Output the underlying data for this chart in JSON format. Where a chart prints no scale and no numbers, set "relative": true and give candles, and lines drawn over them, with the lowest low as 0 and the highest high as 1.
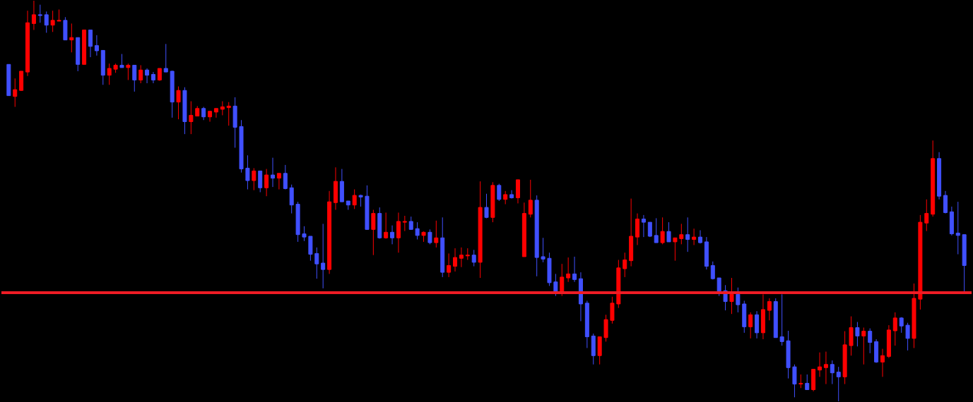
{
  "chart_data": {
    "type": "candlestick",
    "relative": true,
    "categories": [
      null,
      null,
      null,
      null,
      null,
      null,
      null,
      null,
      null,
      null,
      null,
      null,
      null,
      null,
      null,
      null,
      null,
      null,
      null,
      null,
      null,
      null,
      null,
      null,
      null,
      null,
      null,
      null,
      null,
      null,
      null,
      null,
      null,
      null,
      null,
      null,
      null,
      null,
      null,
      null,
      null,
      null,
      null,
      null,
      null,
      null,
      null,
      null,
      null,
      null,
      null,
      null,
      null,
      null,
      null,
      null,
      null,
      null,
      null,
      null,
      null,
      null,
      null,
      null,
      null,
      null,
      null,
      null,
      null,
      null,
      null,
      null,
      null,
      null,
      null,
      null,
      null,
      null,
      null,
      null,
      null,
      null,
      null,
      null,
      null,
      null,
      null,
      null,
      null,
      null,
      null,
      null,
      null,
      null,
      null,
      null,
      null,
      null,
      null,
      null,
      null,
      null,
      null,
      null,
      null,
      null,
      null,
      null,
      null,
      null,
      null,
      null,
      null,
      null,
      null,
      null,
      null,
      null,
      null,
      null,
      null,
      null,
      null,
      null,
      null,
      null,
      null,
      null,
      null,
      null,
      null,
      null,
      null,
      null,
      null,
      null,
      null,
      null,
      null,
      null,
      null,
      null,
      null,
      null,
      null,
      null,
      null,
      null,
      null,
      null,
      null,
      null,
      null
    ],
    "ohlc": [
      [
        0.841,
        0.841,
        0.763,
        0.763
      ],
      [
        0.761,
        0.806,
        0.735,
        0.778
      ],
      [
        0.776,
        0.824,
        0.775,
        0.824
      ],
      [
        0.822,
        0.975,
        0.812,
        0.945
      ],
      [
        0.943,
        1,
        0.927,
        0.965
      ],
      [
        0.965,
        0.99,
        0.945,
        0.963
      ],
      [
        0.965,
        0.973,
        0.92,
        0.939
      ],
      [
        0.939,
        0.975,
        0.922,
        0.951
      ],
      [
        0.949,
        0.978,
        0.949,
        0.951
      ],
      [
        0.951,
        0.959,
        0.902,
        0.902
      ],
      [
        0.902,
        0.943,
        0.871,
        0.908
      ],
      [
        0.908,
        0.908,
        0.824,
        0.841
      ],
      [
        0.841,
        0.927,
        0.841,
        0.927
      ],
      [
        0.927,
        0.927,
        0.859,
        0.886
      ],
      [
        0.888,
        0.914,
        0.863,
        0.875
      ],
      [
        0.876,
        0.876,
        0.79,
        0.814
      ],
      [
        0.814,
        0.843,
        0.79,
        0.831
      ],
      [
        0.829,
        0.843,
        0.82,
        0.839
      ],
      [
        0.839,
        0.867,
        0.833,
        0.833
      ],
      [
        0.833,
        0.843,
        0.802,
        0.839
      ],
      [
        0.839,
        0.839,
        0.773,
        0.802
      ],
      [
        0.802,
        0.839,
        0.794,
        0.827
      ],
      [
        0.827,
        0.831,
        0.794,
        0.814
      ],
      [
        0.816,
        0.822,
        0.794,
        0.802
      ],
      [
        0.802,
        0.831,
        0.8,
        0.831
      ],
      [
        0.831,
        0.892,
        0.822,
        0.822
      ],
      [
        0.824,
        0.825,
        0.708,
        0.747
      ],
      [
        0.747,
        0.786,
        0.704,
        0.776
      ],
      [
        0.776,
        0.784,
        0.667,
        0.698
      ],
      [
        0.698,
        0.749,
        0.667,
        0.714
      ],
      [
        0.712,
        0.737,
        0.712,
        0.731
      ],
      [
        0.731,
        0.735,
        0.702,
        0.71
      ],
      [
        0.71,
        0.725,
        0.698,
        0.724
      ],
      [
        0.722,
        0.731,
        0.708,
        0.731
      ],
      [
        0.729,
        0.749,
        0.714,
        0.735
      ],
      [
        0.733,
        0.747,
        0.688,
        0.737
      ],
      [
        0.737,
        0.759,
        0.633,
        0.684
      ],
      [
        0.686,
        0.702,
        0.571,
        0.58
      ],
      [
        0.582,
        0.614,
        0.529,
        0.551
      ],
      [
        0.551,
        0.582,
        0.527,
        0.575
      ],
      [
        0.575,
        0.575,
        0.522,
        0.533
      ],
      [
        0.533,
        0.58,
        0.512,
        0.565
      ],
      [
        0.565,
        0.608,
        0.535,
        0.557
      ],
      [
        0.557,
        0.569,
        0.529,
        0.569
      ],
      [
        0.569,
        0.59,
        0.529,
        0.531
      ],
      [
        0.533,
        0.541,
        0.469,
        0.49
      ],
      [
        0.492,
        0.498,
        0.398,
        0.416
      ],
      [
        0.418,
        0.437,
        0.4,
        0.41
      ],
      [
        0.412,
        0.412,
        0.351,
        0.367
      ],
      [
        0.369,
        0.384,
        0.306,
        0.343
      ],
      [
        0.345,
        0.443,
        0.282,
        0.329
      ],
      [
        0.329,
        0.525,
        0.318,
        0.498
      ],
      [
        0.496,
        0.584,
        0.478,
        0.549
      ],
      [
        0.549,
        0.58,
        0.498,
        0.498
      ],
      [
        0.5,
        0.5,
        0.478,
        0.49
      ],
      [
        0.49,
        0.529,
        0.48,
        0.514
      ],
      [
        0.514,
        0.516,
        0.486,
        0.51
      ],
      [
        0.512,
        0.539,
        0.429,
        0.429
      ],
      [
        0.429,
        0.478,
        0.365,
        0.469
      ],
      [
        0.469,
        0.484,
        0.406,
        0.408
      ],
      [
        0.408,
        0.471,
        0.406,
        0.422
      ],
      [
        0.422,
        0.439,
        0.392,
        0.408
      ],
      [
        0.408,
        0.471,
        0.371,
        0.449
      ],
      [
        0.447,
        0.463,
        0.425,
        0.449
      ],
      [
        0.449,
        0.461,
        0.429,
        0.429
      ],
      [
        0.431,
        0.447,
        0.404,
        0.414
      ],
      [
        0.414,
        0.424,
        0.398,
        0.422
      ],
      [
        0.422,
        0.429,
        0.392,
        0.396
      ],
      [
        0.396,
        0.451,
        0.384,
        0.408
      ],
      [
        0.408,
        0.459,
        0.31,
        0.322
      ],
      [
        0.322,
        0.369,
        0.31,
        0.339
      ],
      [
        0.337,
        0.382,
        0.324,
        0.359
      ],
      [
        0.357,
        0.384,
        0.335,
        0.365
      ],
      [
        0.363,
        0.382,
        0.353,
        0.365
      ],
      [
        0.365,
        0.378,
        0.337,
        0.347
      ],
      [
        0.347,
        0.549,
        0.308,
        0.484
      ],
      [
        0.484,
        0.518,
        0.457,
        0.459
      ],
      [
        0.459,
        0.547,
        0.447,
        0.539
      ],
      [
        0.539,
        0.543,
        0.5,
        0.504
      ],
      [
        0.504,
        0.525,
        0.492,
        0.516
      ],
      [
        0.516,
        0.527,
        0.506,
        0.508
      ],
      [
        0.508,
        0.553,
        0.494,
        0.553
      ],
      [
        0.361,
        0.496,
        0.361,
        0.469
      ],
      [
        0.467,
        0.553,
        0.459,
        0.502
      ],
      [
        0.502,
        0.514,
        0.312,
        0.359
      ],
      [
        0.361,
        0.408,
        0.347,
        0.355
      ],
      [
        0.357,
        0.371,
        0.288,
        0.296
      ],
      [
        0.298,
        0.318,
        0.263,
        0.271
      ],
      [
        0.271,
        0.343,
        0.263,
        0.31
      ],
      [
        0.308,
        0.359,
        0.298,
        0.318
      ],
      [
        0.318,
        0.361,
        0.298,
        0.304
      ],
      [
        0.306,
        0.322,
        0.2,
        0.243
      ],
      [
        0.245,
        0.251,
        0.133,
        0.161
      ],
      [
        0.163,
        0.169,
        0.092,
        0.114
      ],
      [
        0.114,
        0.161,
        0.092,
        0.161
      ],
      [
        0.159,
        0.216,
        0.149,
        0.204
      ],
      [
        0.202,
        0.261,
        0.194,
        0.245
      ],
      [
        0.243,
        0.353,
        0.233,
        0.333
      ],
      [
        0.331,
        0.371,
        0.31,
        0.353
      ],
      [
        0.351,
        0.506,
        0.337,
        0.412
      ],
      [
        0.41,
        0.469,
        0.39,
        0.455
      ],
      [
        0.455,
        0.465,
        0.41,
        0.447
      ],
      [
        0.447,
        0.447,
        0.41,
        0.412
      ],
      [
        0.414,
        0.457,
        0.396,
        0.396
      ],
      [
        0.396,
        0.459,
        0.392,
        0.424
      ],
      [
        0.424,
        0.447,
        0.398,
        0.398
      ],
      [
        0.398,
        0.408,
        0.351,
        0.408
      ],
      [
        0.406,
        0.443,
        0.392,
        0.416
      ],
      [
        0.416,
        0.459,
        0.373,
        0.404
      ],
      [
        0.404,
        0.431,
        0.39,
        0.41
      ],
      [
        0.41,
        0.427,
        0.394,
        0.396
      ],
      [
        0.398,
        0.41,
        0.329,
        0.337
      ],
      [
        0.339,
        0.349,
        0.304,
        0.306
      ],
      [
        0.308,
        0.308,
        0.263,
        0.275
      ],
      [
        0.276,
        0.29,
        0.227,
        0.249
      ],
      [
        0.249,
        0.308,
        0.218,
        0.267
      ],
      [
        0.267,
        0.284,
        0.222,
        0.241
      ],
      [
        0.243,
        0.251,
        0.171,
        0.186
      ],
      [
        0.186,
        0.222,
        0.157,
        0.216
      ],
      [
        0.216,
        0.225,
        0.157,
        0.171
      ],
      [
        0.171,
        0.267,
        0.155,
        0.229
      ],
      [
        0.227,
        0.257,
        0.202,
        0.249
      ],
      [
        0.249,
        0.257,
        0.159,
        0.159
      ],
      [
        0.161,
        0.267,
        0.139,
        0.149
      ],
      [
        0.151,
        0.176,
        0.057,
        0.084
      ],
      [
        0.086,
        0.092,
        0.01,
        0.043
      ],
      [
        0.043,
        0.067,
        0.033,
        0.045
      ],
      [
        0.045,
        0.067,
        0.029,
        0.029
      ],
      [
        0.029,
        0.08,
        0.025,
        0.08
      ],
      [
        0.078,
        0.122,
        0.061,
        0.086
      ],
      [
        0.084,
        0.124,
        0.043,
        0.092
      ],
      [
        0.092,
        0.102,
        0.043,
        0.071
      ],
      [
        0.073,
        0.086,
        0,
        0.061
      ],
      [
        0.061,
        0.175,
        0.043,
        0.141
      ],
      [
        0.139,
        0.212,
        0.114,
        0.184
      ],
      [
        0.184,
        0.198,
        0.137,
        0.163
      ],
      [
        0.163,
        0.184,
        0.092,
        0.175
      ],
      [
        0.175,
        0.182,
        0.12,
        0.147
      ],
      [
        0.149,
        0.155,
        0.096,
        0.098
      ],
      [
        0.098,
        0.131,
        0.061,
        0.114
      ],
      [
        0.112,
        0.19,
        0.108,
        0.178
      ],
      [
        0.176,
        0.222,
        0.139,
        0.208
      ],
      [
        0.208,
        0.21,
        0.171,
        0.188
      ],
      [
        0.19,
        0.196,
        0.127,
        0.157
      ],
      [
        0.157,
        0.294,
        0.133,
        0.257
      ],
      [
        0.255,
        0.465,
        0.229,
        0.447
      ],
      [
        0.445,
        0.504,
        0.425,
        0.469
      ],
      [
        0.467,
        0.651,
        0.461,
        0.606
      ],
      [
        0.606,
        0.622,
        0.504,
        0.512
      ],
      [
        0.514,
        0.525,
        0.469,
        0.471
      ],
      [
        0.473,
        0.486,
        0.414,
        0.418
      ],
      [
        0.42,
        0.498,
        0.367,
        0.414
      ],
      [
        0.416,
        0.416,
        0.273,
        0.339
      ]
    ],
    "colors": [
      "#4050ff",
      "#ff0000",
      "#ff0000",
      "#ff0000",
      "#ff0000",
      "#4050ff",
      "#4050ff",
      "#ff0000",
      "#ff0000",
      "#4050ff",
      "#ff0000",
      "#4050ff",
      "#ff0000",
      "#4050ff",
      "#4050ff",
      "#4050ff",
      "#ff0000",
      "#ff0000",
      "#4050ff",
      "#ff0000",
      "#4050ff",
      "#ff0000",
      "#4050ff",
      "#4050ff",
      "#ff0000",
      "#4050ff",
      "#4050ff",
      "#ff0000",
      "#4050ff",
      "#ff0000",
      "#ff0000",
      "#4050ff",
      "#ff0000",
      "#ff0000",
      "#ff0000",
      "#ff0000",
      "#4050ff",
      "#4050ff",
      "#4050ff",
      "#ff0000",
      "#4050ff",
      "#ff0000",
      "#4050ff",
      "#ff0000",
      "#4050ff",
      "#4050ff",
      "#4050ff",
      "#4050ff",
      "#4050ff",
      "#4050ff",
      "#4050ff",
      "#ff0000",
      "#ff0000",
      "#4050ff",
      "#4050ff",
      "#ff0000",
      "#4050ff",
      "#4050ff",
      "#ff0000",
      "#4050ff",
      "#ff0000",
      "#4050ff",
      "#ff0000",
      "#ff0000",
      "#4050ff",
      "#4050ff",
      "#ff0000",
      "#4050ff",
      "#ff0000",
      "#4050ff",
      "#ff0000",
      "#ff0000",
      "#ff0000",
      "#ff0000",
      "#4050ff",
      "#ff0000",
      "#4050ff",
      "#ff0000",
      "#4050ff",
      "#ff0000",
      "#4050ff",
      "#ff0000",
      "#ff0000",
      "#ff0000",
      "#4050ff",
      "#4050ff",
      "#4050ff",
      "#4050ff",
      "#ff0000",
      "#ff0000",
      "#4050ff",
      "#4050ff",
      "#4050ff",
      "#4050ff",
      "#ff0000",
      "#ff0000",
      "#ff0000",
      "#ff0000",
      "#ff0000",
      "#ff0000",
      "#ff0000",
      "#4050ff",
      "#4050ff",
      "#4050ff",
      "#ff0000",
      "#4050ff",
      "#ff0000",
      "#ff0000",
      "#4050ff",
      "#ff0000",
      "#4050ff",
      "#4050ff",
      "#4050ff",
      "#4050ff",
      "#4050ff",
      "#ff0000",
      "#4050ff",
      "#4050ff",
      "#ff0000",
      "#4050ff",
      "#ff0000",
      "#ff0000",
      "#4050ff",
      "#4050ff",
      "#4050ff",
      "#4050ff",
      "#ff0000",
      "#4050ff",
      "#ff0000",
      "#ff0000",
      "#ff0000",
      "#4050ff",
      "#4050ff",
      "#ff0000",
      "#ff0000",
      "#4050ff",
      "#ff0000",
      "#4050ff",
      "#4050ff",
      "#ff0000",
      "#ff0000",
      "#ff0000",
      "#4050ff",
      "#4050ff",
      "#ff0000",
      "#ff0000",
      "#ff0000",
      "#ff0000",
      "#4050ff",
      "#4050ff",
      "#4050ff",
      "#4050ff",
      "#4050ff"
    ],
    "ref_lines": [
      {
        "axis": "y",
        "value": 0.271,
        "color": "#ee1c25"
      }
    ]
  }
}
